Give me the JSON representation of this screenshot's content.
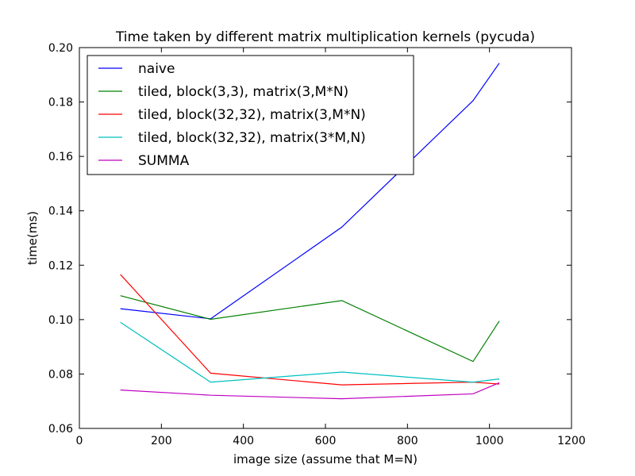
{
  "chart_data": {
    "type": "line",
    "title": "Time taken by different matrix multiplication kernels (pycuda)",
    "xlabel": "image size (assume that M=N)",
    "ylabel": "time(ms)",
    "xlim": [
      0,
      1200
    ],
    "ylim": [
      0.06,
      0.2
    ],
    "xticks": [
      0,
      200,
      400,
      600,
      800,
      1000,
      1200
    ],
    "xtick_labels": [
      "0",
      "200",
      "400",
      "600",
      "800",
      "1000",
      "1200"
    ],
    "yticks": [
      0.06,
      0.08,
      0.1,
      0.12,
      0.14,
      0.16,
      0.18,
      0.2
    ],
    "ytick_labels": [
      "0.06",
      "0.08",
      "0.10",
      "0.12",
      "0.14",
      "0.16",
      "0.18",
      "0.20"
    ],
    "grid": false,
    "legend_position": "top-left",
    "x": [
      100,
      320,
      640,
      960,
      1024
    ],
    "series": [
      {
        "name": "naive",
        "color": "#0000ff",
        "values": [
          0.104,
          0.1003,
          0.134,
          0.1805,
          0.1943
        ]
      },
      {
        "name": "tiled, block(3,3), matrix(3,M*N)",
        "color": "#008000",
        "values": [
          0.1088,
          0.1001,
          0.107,
          0.0846,
          0.0995
        ]
      },
      {
        "name": "tiled, block(32,32), matrix(3,M*N)",
        "color": "#ff0000",
        "values": [
          0.1166,
          0.0803,
          0.076,
          0.077,
          0.0763
        ]
      },
      {
        "name": "tiled, block(32,32), matrix(3*M,N)",
        "color": "#00bfbf",
        "values": [
          0.099,
          0.077,
          0.0807,
          0.077,
          0.0782
        ]
      },
      {
        "name": "SUMMA",
        "color": "#bf00bf",
        "values": [
          0.0741,
          0.0722,
          0.0709,
          0.0727,
          0.0768
        ]
      }
    ]
  }
}
